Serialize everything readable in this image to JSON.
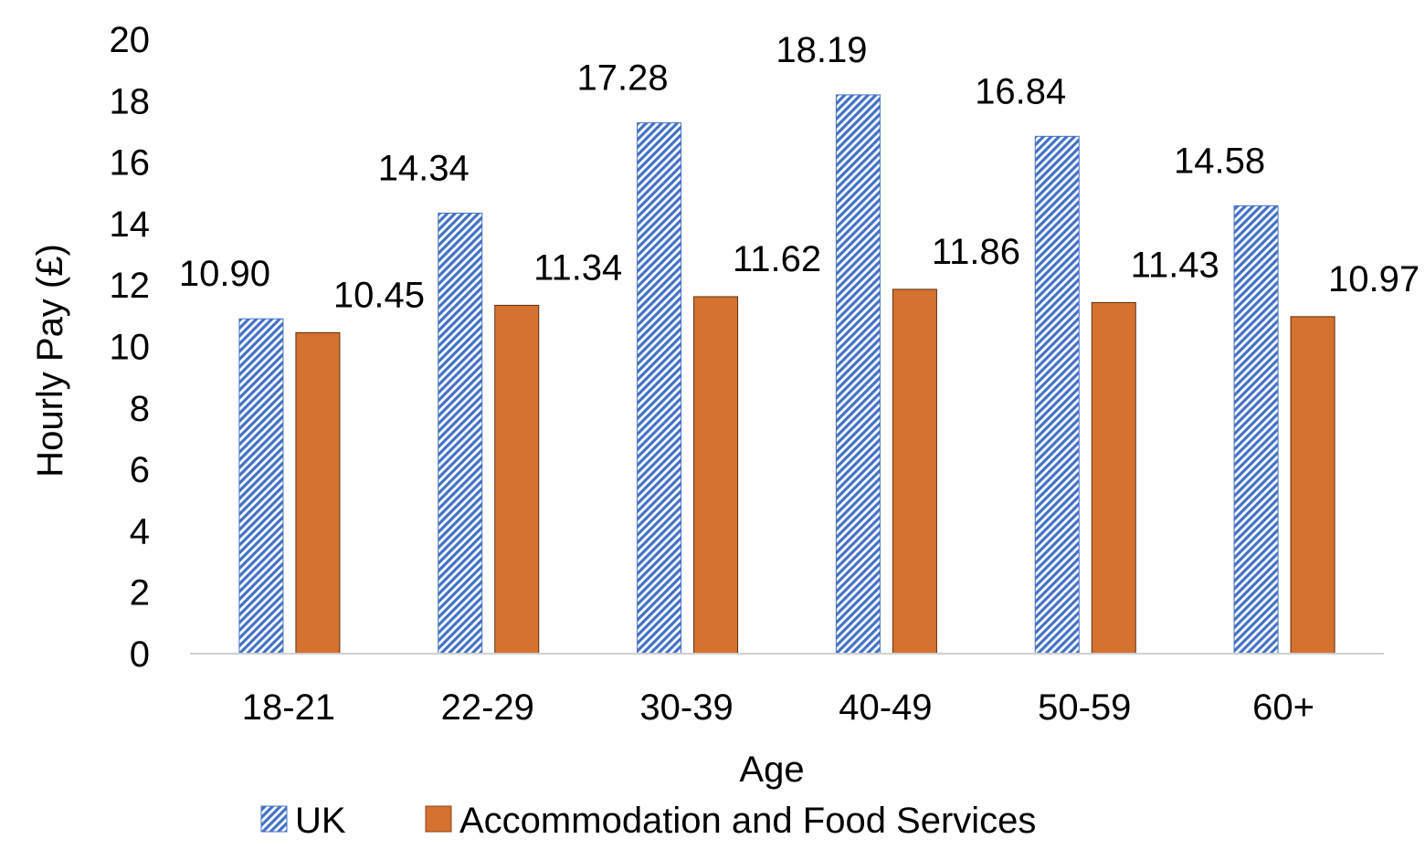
{
  "chart_data": {
    "type": "bar",
    "xlabel": "Age",
    "ylabel": "Hourly Pay (£)",
    "ylim": [
      0,
      20
    ],
    "yticks": [
      0,
      2,
      4,
      6,
      8,
      10,
      12,
      14,
      16,
      18,
      20
    ],
    "categories": [
      "18-21",
      "22-29",
      "30-39",
      "40-49",
      "50-59",
      "60+"
    ],
    "series": [
      {
        "name": "UK",
        "values": [
          10.9,
          14.34,
          17.28,
          18.19,
          16.84,
          14.58
        ],
        "labels": [
          "10.90",
          "14.34",
          "17.28",
          "18.19",
          "16.84",
          "14.58"
        ],
        "color": "#4472C4",
        "pattern": "diagonal-stripes"
      },
      {
        "name": "Accommodation and Food Services",
        "values": [
          10.45,
          11.34,
          11.62,
          11.86,
          11.43,
          10.97
        ],
        "labels": [
          "10.45",
          "11.34",
          "11.62",
          "11.86",
          "11.43",
          "10.97"
        ],
        "color": "#D57230",
        "pattern": "solid"
      }
    ],
    "grid": false,
    "legend_position": "bottom"
  }
}
